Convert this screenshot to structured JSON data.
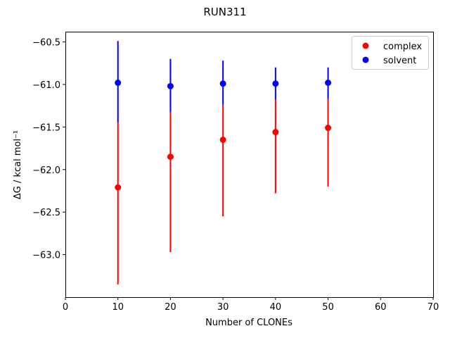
{
  "chart_data": {
    "type": "scatter",
    "title": "RUN311",
    "xlabel": "Number of CLONEs",
    "ylabel": "ΔG / kcal mol⁻¹",
    "xlim": [
      0,
      70
    ],
    "ylim": [
      -63.5,
      -60.38
    ],
    "xticks": [
      0,
      10,
      20,
      30,
      40,
      50,
      60,
      70
    ],
    "yticks": [
      -63.0,
      -62.5,
      -62.0,
      -61.5,
      -61.0,
      -60.5
    ],
    "ytick_labels": [
      "−63.0",
      "−62.5",
      "−62.0",
      "−61.5",
      "−61.0",
      "−60.5"
    ],
    "grid": false,
    "legend_position": "top-right",
    "series": [
      {
        "name": "complex",
        "color": "#ff0000",
        "x": [
          10,
          20,
          30,
          40,
          50
        ],
        "y": [
          -62.21,
          -61.85,
          -61.65,
          -61.56,
          -61.51
        ],
        "err_low": [
          -63.35,
          -62.97,
          -62.55,
          -62.28,
          -62.2
        ],
        "err_high": [
          -61.45,
          -61.33,
          -61.24,
          -61.18,
          -61.17
        ]
      },
      {
        "name": "solvent",
        "color": "#0000ff",
        "x": [
          10,
          20,
          30,
          40,
          50
        ],
        "y": [
          -60.98,
          -61.02,
          -60.99,
          -60.99,
          -60.98
        ],
        "err_low": [
          -61.45,
          -61.33,
          -61.24,
          -61.18,
          -61.17
        ],
        "err_high": [
          -60.49,
          -60.7,
          -60.72,
          -60.8,
          -60.8
        ]
      }
    ]
  }
}
